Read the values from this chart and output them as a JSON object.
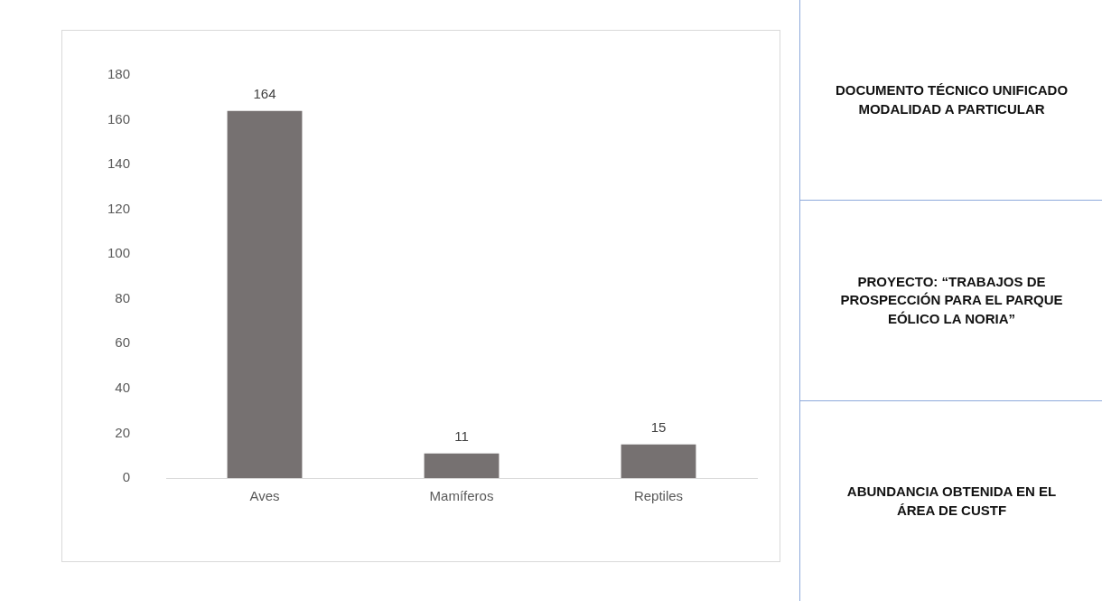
{
  "chart_data": {
    "type": "bar",
    "title": "ABUNDANCIA OBTENIDA EN EL ÁREA DE CUSTF",
    "categories": [
      "Aves",
      "Mamíferos",
      "Reptiles"
    ],
    "values": [
      164,
      11,
      15
    ],
    "color": "#767171",
    "ylim": [
      0,
      180
    ],
    "yticks": [
      0,
      20,
      40,
      60,
      80,
      100,
      120,
      140,
      160,
      180
    ],
    "grid": false,
    "data_labels": true,
    "annotations": [
      "DOCUMENTO TÉCNICO UNIFICADO MODALIDAD A PARTICULAR",
      "PROYECTO: “TRABAJOS DE PROSPECCIÓN PARA EL PARQUE EÓLICO LA NORIA”"
    ]
  }
}
